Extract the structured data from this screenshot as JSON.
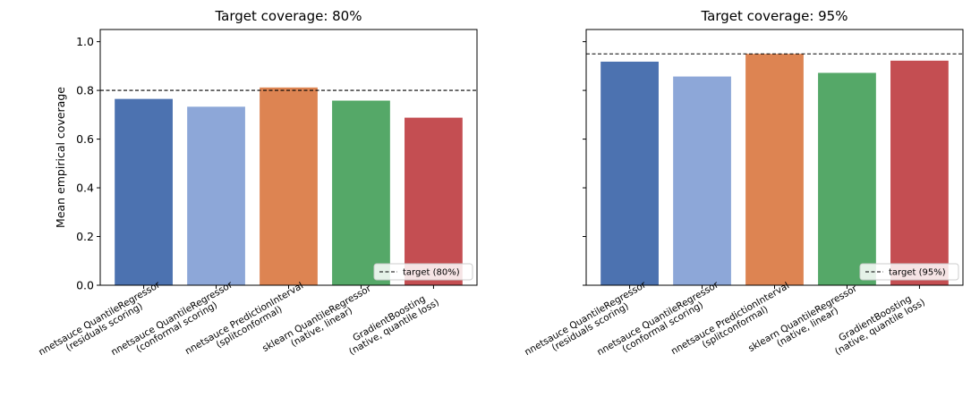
{
  "chart_data": [
    {
      "type": "bar",
      "title": "Target coverage: 80%",
      "ylabel": "Mean empirical coverage",
      "xlabel": "",
      "ylim": [
        0,
        1.05
      ],
      "yticks": [
        "0.0",
        "0.2",
        "0.4",
        "0.6",
        "0.8",
        "1.0"
      ],
      "categories": [
        [
          "nnetsauce QuantileRegressor",
          "(residuals scoring)"
        ],
        [
          "nnetsauce QuantileRegressor",
          "(conformal scoring)"
        ],
        [
          "nnetsauce PredictionInterval",
          "(splitconformal)"
        ],
        [
          "sklearn QuantileRegressor",
          "(native, linear)"
        ],
        [
          "GradientBoosting",
          "(native, quantile loss)"
        ]
      ],
      "values": [
        0.765,
        0.733,
        0.812,
        0.758,
        0.688
      ],
      "colors": [
        "#4c72b0",
        "#8da7d8",
        "#dd8452",
        "#55a868",
        "#c44e52"
      ],
      "target": 0.8,
      "legend": {
        "label": "target (80%)",
        "placement": "lower-right"
      }
    },
    {
      "type": "bar",
      "title": "Target coverage: 95%",
      "ylabel": "",
      "xlabel": "",
      "ylim": [
        0,
        1.05
      ],
      "yticks": [
        "",
        "",
        "",
        "",
        "",
        ""
      ],
      "categories": [
        [
          "nnetsauce QuantileRegressor",
          "(residuals scoring)"
        ],
        [
          "nnetsauce QuantileRegressor",
          "(conformal scoring)"
        ],
        [
          "nnetsauce PredictionInterval",
          "(splitconformal)"
        ],
        [
          "sklearn QuantileRegressor",
          "(native, linear)"
        ],
        [
          "GradientBoosting",
          "(native, quantile loss)"
        ]
      ],
      "values": [
        0.918,
        0.857,
        0.95,
        0.872,
        0.922
      ],
      "colors": [
        "#4c72b0",
        "#8da7d8",
        "#dd8452",
        "#55a868",
        "#c44e52"
      ],
      "target": 0.95,
      "legend": {
        "label": "target (95%)",
        "placement": "lower-right"
      }
    }
  ]
}
